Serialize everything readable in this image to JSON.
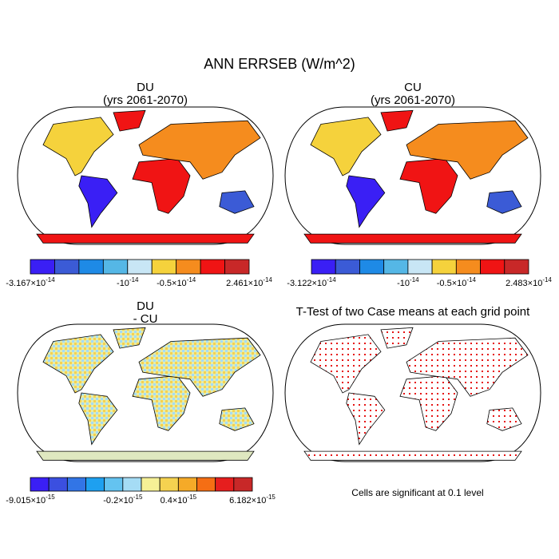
{
  "title": "ANN ERRSEB (W/m^2)",
  "panels": [
    {
      "title": "DU",
      "subtitle": "(yrs 2061-2070)",
      "colorbar": {
        "colors": [
          "#3a1ff5",
          "#3b5bd6",
          "#1e8ae6",
          "#55b7e6",
          "#c8e6f5",
          "#f5d23c",
          "#f58c1e",
          "#f01414",
          "#c82828"
        ],
        "labels": [
          {
            "base": "-3.167×10",
            "exp": "-14"
          },
          null,
          null,
          null,
          {
            "base": "-10",
            "exp": "-14"
          },
          null,
          {
            "base": "-0.5×10",
            "exp": "-14"
          },
          null,
          null,
          {
            "base": "2.461×10",
            "exp": "-14"
          }
        ]
      }
    },
    {
      "title": "CU",
      "subtitle": "(yrs 2061-2070)",
      "colorbar": {
        "colors": [
          "#3a1ff5",
          "#3b5bd6",
          "#1e8ae6",
          "#55b7e6",
          "#c8e6f5",
          "#f5d23c",
          "#f58c1e",
          "#f01414",
          "#c82828"
        ],
        "labels": [
          {
            "base": "-3.122×10",
            "exp": "-14"
          },
          null,
          null,
          null,
          {
            "base": "-10",
            "exp": "-14"
          },
          null,
          {
            "base": "-0.5×10",
            "exp": "-14"
          },
          null,
          null,
          {
            "base": "2.483×10",
            "exp": "-14"
          }
        ]
      }
    },
    {
      "title": "DU",
      "subtitle": "- CU",
      "colorbar": {
        "colors": [
          "#3a1ff5",
          "#3b4fe0",
          "#3275e6",
          "#1ea0f0",
          "#64c3f0",
          "#a5dcf5",
          "#f5f096",
          "#f5d250",
          "#f5aa28",
          "#f56e14",
          "#e61e1e",
          "#c82828"
        ],
        "labels": [
          {
            "base": "-9.015×10",
            "exp": "-15"
          },
          null,
          null,
          null,
          null,
          {
            "base": "-0.2×10",
            "exp": "-15"
          },
          null,
          null,
          {
            "base": "0.4×10",
            "exp": "-15"
          },
          null,
          null,
          null,
          {
            "base": "6.182×10",
            "exp": "-15"
          }
        ]
      }
    },
    {
      "title": "T-Test of two Case means at each grid point",
      "note": "Cells are significant at 0.1 level"
    }
  ]
}
